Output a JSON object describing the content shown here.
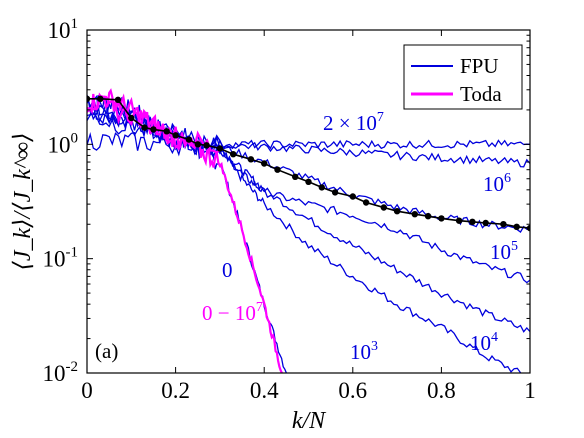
{
  "chart_data": {
    "type": "line",
    "panel_label": "(a)",
    "xlabel": "k/N",
    "ylabel": "⟨J_k⟩/⟨J_k^∞⟩",
    "xlim": [
      0,
      1
    ],
    "ylim": [
      0.01,
      10
    ],
    "yscale": "log",
    "grid": false,
    "legend_position": "top-right",
    "x_ticks": [
      "0",
      "0.2",
      "0.4",
      "0.6",
      "0.8",
      "1"
    ],
    "y_ticks": [
      {
        "base": "10",
        "exp": "-2"
      },
      {
        "base": "10",
        "exp": "-1"
      },
      {
        "base": "10",
        "exp": "0"
      },
      {
        "base": "10",
        "exp": "1"
      }
    ],
    "legend": [
      {
        "label": "FPU",
        "color": "#0000dd"
      },
      {
        "label": "Toda",
        "color": "#ff00ff"
      }
    ],
    "annotations": [
      {
        "base": "2 × 10",
        "exp": "7",
        "color": "#0000dd"
      },
      {
        "base": "10",
        "exp": "6",
        "color": "#0000dd"
      },
      {
        "base": "10",
        "exp": "5",
        "color": "#0000dd"
      },
      {
        "base": "10",
        "exp": "4",
        "color": "#0000dd"
      },
      {
        "base": "10",
        "exp": "3",
        "color": "#0000dd"
      },
      {
        "base": "0",
        "exp": "",
        "color": "#0000dd"
      },
      {
        "base": "0 − 10",
        "exp": "7",
        "color": "#ff00ff"
      }
    ],
    "series": [
      {
        "family": "FPU",
        "color": "#0000dd",
        "x": [
          0,
          0.05,
          0.1,
          0.15,
          0.2,
          0.25,
          0.3,
          0.35,
          0.4,
          0.45
        ],
        "y": [
          2.3,
          2.3,
          2.0,
          1.5,
          1.1,
          0.9,
          0.7,
          0.18,
          0.04,
          0.01
        ]
      },
      {
        "family": "FPU",
        "color": "#0000dd",
        "x": [
          0,
          0.1,
          0.2,
          0.3,
          0.35,
          0.4,
          0.5,
          0.6,
          0.7,
          0.8,
          0.9,
          1.0
        ],
        "y": [
          2.0,
          1.7,
          1.2,
          0.9,
          0.5,
          0.3,
          0.13,
          0.07,
          0.04,
          0.025,
          0.014,
          0.009
        ]
      },
      {
        "family": "FPU",
        "color": "#0000dd",
        "x": [
          0,
          0.1,
          0.2,
          0.3,
          0.35,
          0.4,
          0.5,
          0.6,
          0.7,
          0.8,
          0.9,
          1.0
        ],
        "y": [
          2.0,
          1.7,
          1.2,
          0.9,
          0.6,
          0.4,
          0.22,
          0.13,
          0.08,
          0.05,
          0.033,
          0.023
        ]
      },
      {
        "family": "FPU",
        "color": "#0000dd",
        "x": [
          0,
          0.1,
          0.2,
          0.3,
          0.35,
          0.4,
          0.5,
          0.6,
          0.7,
          0.8,
          0.9,
          1.0
        ],
        "y": [
          2.0,
          1.7,
          1.2,
          0.9,
          0.55,
          0.38,
          0.3,
          0.24,
          0.18,
          0.12,
          0.085,
          0.065
        ]
      },
      {
        "family": "FPU",
        "color": "#0000dd",
        "x": [
          0,
          0.1,
          0.2,
          0.3,
          0.4,
          0.5,
          0.6,
          0.7,
          0.8,
          0.9,
          1.0
        ],
        "y": [
          2.4,
          1.6,
          1.2,
          0.95,
          0.7,
          0.5,
          0.36,
          0.28,
          0.23,
          0.2,
          0.18
        ]
      },
      {
        "family": "FPU",
        "color": "#0000dd",
        "x": [
          0,
          0.1,
          0.2,
          0.3,
          0.4,
          0.5,
          0.6,
          0.7,
          0.8,
          0.9,
          1.0
        ],
        "y": [
          1.8,
          1.4,
          1.1,
          1.0,
          0.95,
          0.9,
          0.85,
          0.8,
          0.76,
          0.72,
          0.68
        ]
      },
      {
        "family": "FPU",
        "color": "#0000dd",
        "x": [
          0,
          0.1,
          0.2,
          0.3,
          0.4,
          0.5,
          0.6,
          0.7,
          0.8,
          0.9,
          1.0
        ],
        "y": [
          1.1,
          1.05,
          1.0,
          1.0,
          1.0,
          1.0,
          1.0,
          1.0,
          1.0,
          1.0,
          1.0
        ]
      },
      {
        "family": "Toda",
        "color": "#ff00ff",
        "x": [
          0,
          0.05,
          0.1,
          0.15,
          0.2,
          0.25,
          0.3,
          0.35,
          0.4,
          0.44
        ],
        "y": [
          2.3,
          2.5,
          2.0,
          1.5,
          1.1,
          0.9,
          0.7,
          0.18,
          0.04,
          0.01
        ]
      },
      {
        "family": "Toda",
        "color": "#ff00ff",
        "x": [
          0,
          0.1,
          0.2,
          0.3
        ],
        "y": [
          2.4,
          1.8,
          1.2,
          0.9
        ]
      }
    ],
    "fit_points": {
      "color": "#000000",
      "x": [
        0.0,
        0.03,
        0.07,
        0.1,
        0.13,
        0.15,
        0.18,
        0.2,
        0.23,
        0.25,
        0.27,
        0.3,
        0.33,
        0.37,
        0.4,
        0.43,
        0.47,
        0.5,
        0.53,
        0.56,
        0.6,
        0.63,
        0.67,
        0.7,
        0.74,
        0.77,
        0.8,
        0.84,
        0.87,
        0.9,
        0.94,
        0.97,
        1.0
      ],
      "y": [
        2.5,
        2.5,
        2.45,
        1.7,
        1.4,
        1.35,
        1.3,
        1.2,
        1.1,
        1.0,
        0.98,
        0.92,
        0.82,
        0.74,
        0.68,
        0.6,
        0.52,
        0.47,
        0.42,
        0.38,
        0.35,
        0.31,
        0.28,
        0.26,
        0.245,
        0.235,
        0.225,
        0.215,
        0.21,
        0.205,
        0.2,
        0.19,
        0.185
      ]
    }
  }
}
